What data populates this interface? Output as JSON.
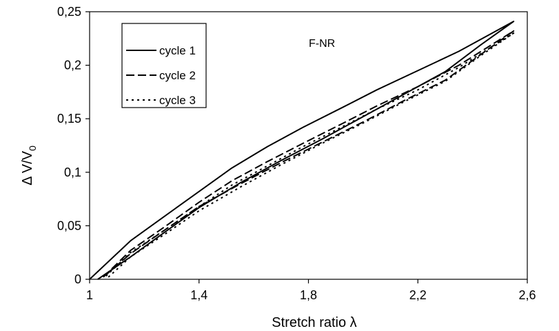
{
  "chart_data": {
    "type": "line",
    "title": "",
    "annotation": "F-NR",
    "xlabel": "Stretch ratio λ",
    "ylabel_main": "Δ V/V",
    "ylabel_sub": "0",
    "xlim": [
      1,
      2.6
    ],
    "ylim": [
      0,
      0.25
    ],
    "x_ticks": [
      "1",
      "1,4",
      "1,8",
      "2,2",
      "2,6"
    ],
    "x_tick_values": [
      1,
      1.4,
      1.8,
      2.2,
      2.6
    ],
    "y_ticks": [
      "0",
      "0,05",
      "0,1",
      "0,15",
      "0,2",
      "0,25"
    ],
    "y_tick_values": [
      0,
      0.05,
      0.1,
      0.15,
      0.2,
      0.25
    ],
    "grid": false,
    "legend_position": "top-left",
    "series": [
      {
        "name": "cycle 1",
        "dash": "solid",
        "x": [
          1.0,
          1.15,
          1.28,
          1.4,
          1.52,
          1.65,
          1.78,
          1.92,
          2.05,
          2.2,
          2.35,
          2.55,
          2.43,
          2.3,
          2.15,
          2.0,
          1.85,
          1.7,
          1.55,
          1.4,
          1.28,
          1.15,
          1.03
        ],
        "y": [
          0.0,
          0.036,
          0.06,
          0.082,
          0.104,
          0.124,
          0.142,
          0.16,
          0.177,
          0.195,
          0.213,
          0.241,
          0.219,
          0.194,
          0.173,
          0.152,
          0.131,
          0.111,
          0.09,
          0.067,
          0.045,
          0.021,
          0.0
        ]
      },
      {
        "name": "cycle 2",
        "dash": "longdash",
        "x": [
          1.05,
          1.15,
          1.28,
          1.4,
          1.52,
          1.65,
          1.78,
          1.92,
          2.05,
          2.2,
          2.35,
          2.55,
          2.43,
          2.3,
          2.15,
          2.0,
          1.85,
          1.7,
          1.55,
          1.4,
          1.28,
          1.15,
          1.05
        ],
        "y": [
          0.002,
          0.027,
          0.05,
          0.072,
          0.092,
          0.11,
          0.127,
          0.145,
          0.162,
          0.18,
          0.2,
          0.232,
          0.21,
          0.186,
          0.167,
          0.147,
          0.128,
          0.109,
          0.089,
          0.068,
          0.047,
          0.024,
          0.002
        ]
      },
      {
        "name": "cycle 3",
        "dash": "dotted",
        "x": [
          1.06,
          1.15,
          1.28,
          1.4,
          1.52,
          1.65,
          1.78,
          1.92,
          2.05,
          2.2,
          2.35,
          2.55,
          2.43,
          2.3,
          2.15,
          2.0,
          1.85,
          1.7,
          1.55,
          1.4,
          1.28,
          1.15,
          1.06
        ],
        "y": [
          0.003,
          0.025,
          0.047,
          0.068,
          0.088,
          0.106,
          0.124,
          0.142,
          0.159,
          0.177,
          0.198,
          0.23,
          0.209,
          0.185,
          0.166,
          0.146,
          0.127,
          0.107,
          0.086,
          0.064,
          0.043,
          0.021,
          0.0
        ]
      }
    ]
  }
}
